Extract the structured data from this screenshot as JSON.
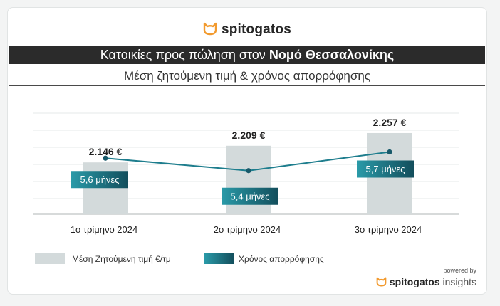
{
  "brand": {
    "name": "spitogatos",
    "suffix": "insights",
    "powered_by": "powered by",
    "accent": "#f29a2e"
  },
  "header": {
    "title_prefix": "Κατοικίες προς πώληση στον",
    "title_emphasis": "Νομό Θεσσαλονίκης",
    "subtitle": "Μέση ζητούμενη τιμή & χρόνος απορρόφησης"
  },
  "chart_data": {
    "type": "bar",
    "categories": [
      "1ο τρίμηνο 2024",
      "2ο τρίμηνο 2024",
      "3ο τρίμηνο 2024"
    ],
    "series": [
      {
        "name": "Μέση Ζητούμενη τιμή €/τμ",
        "type": "bar",
        "values": [
          2146,
          2209,
          2257
        ],
        "labels": [
          "2.146 €",
          "2.209 €",
          "2.257 €"
        ],
        "color": "#d3dadb"
      },
      {
        "name": "Χρόνος απορρόφησης",
        "type": "line",
        "values": [
          5.6,
          5.4,
          5.7
        ],
        "labels": [
          "5,6 μήνες",
          "5,4 μήνες",
          "5,7 μήνες"
        ],
        "color": "#1d7d8d"
      }
    ],
    "grid": true,
    "legend": "bottom-left"
  }
}
